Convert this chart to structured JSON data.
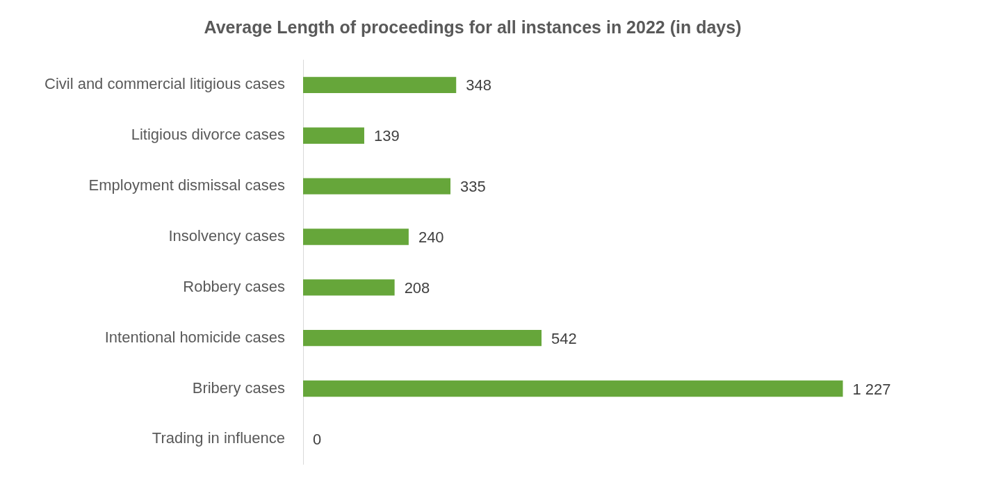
{
  "chart_data": {
    "type": "bar",
    "orientation": "horizontal",
    "title": "Average Length of proceedings for all instances in 2022 (in days)",
    "categories": [
      "Civil and commercial litigious cases",
      "Litigious divorce cases",
      "Employment dismissal cases",
      "Insolvency cases",
      "Robbery cases",
      "Intentional homicide cases",
      "Bribery cases",
      "Trading in influence"
    ],
    "values": [
      348,
      139,
      335,
      240,
      208,
      542,
      1227,
      0
    ],
    "value_labels": [
      "348",
      "139",
      "335",
      "240",
      "208",
      "542",
      "1 227",
      "0"
    ],
    "color": "#66a63a",
    "grid": false,
    "legend": false,
    "tick_labels": "y"
  }
}
